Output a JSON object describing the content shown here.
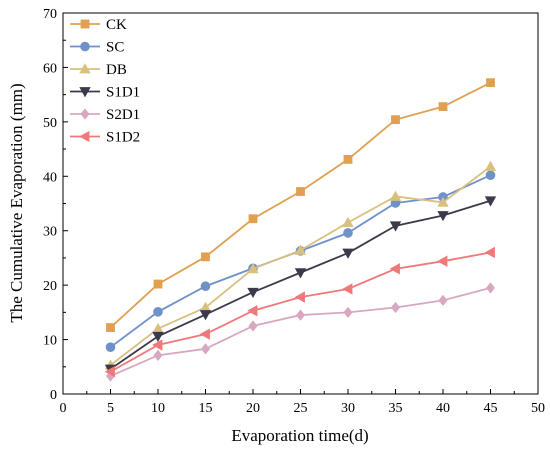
{
  "chart_data": {
    "type": "line",
    "xlabel": "Evaporation time(d)",
    "ylabel": "The Cumulative Evaporation (mm)",
    "xlim": [
      0,
      50
    ],
    "ylim": [
      0,
      70
    ],
    "xticks": [
      0,
      5,
      10,
      15,
      20,
      25,
      30,
      35,
      40,
      45,
      50
    ],
    "yticks": [
      0,
      10,
      20,
      30,
      40,
      50,
      60,
      70
    ],
    "x": [
      5,
      10,
      15,
      20,
      25,
      30,
      35,
      40,
      45
    ],
    "grid": false,
    "legend_position": "top-left",
    "series": [
      {
        "name": "CK",
        "color": "#e0a050",
        "marker": "square",
        "values": [
          12.2,
          20.2,
          25.2,
          32.2,
          37.2,
          43.1,
          50.4,
          52.8,
          57.2
        ]
      },
      {
        "name": "SC",
        "color": "#7090c8",
        "marker": "circle",
        "values": [
          8.6,
          15.1,
          19.8,
          23.1,
          26.3,
          29.6,
          35.1,
          36.2,
          40.2
        ]
      },
      {
        "name": "DB",
        "color": "#d8c080",
        "marker": "triangle-up",
        "values": [
          5.3,
          12.0,
          15.9,
          23.0,
          26.4,
          31.5,
          36.3,
          35.2,
          41.8
        ]
      },
      {
        "name": "S1D1",
        "color": "#3a3a4a",
        "marker": "triangle-down",
        "values": [
          4.6,
          10.6,
          14.6,
          18.7,
          22.3,
          25.9,
          30.9,
          32.8,
          35.5
        ]
      },
      {
        "name": "S2D1",
        "color": "#d8a8c0",
        "marker": "diamond",
        "values": [
          3.3,
          7.1,
          8.3,
          12.5,
          14.5,
          15.0,
          15.9,
          17.2,
          19.5
        ]
      },
      {
        "name": "S1D2",
        "color": "#f07878",
        "marker": "triangle-left",
        "values": [
          4.1,
          9.0,
          11.0,
          15.3,
          17.8,
          19.3,
          23.0,
          24.4,
          26.0
        ]
      }
    ]
  }
}
